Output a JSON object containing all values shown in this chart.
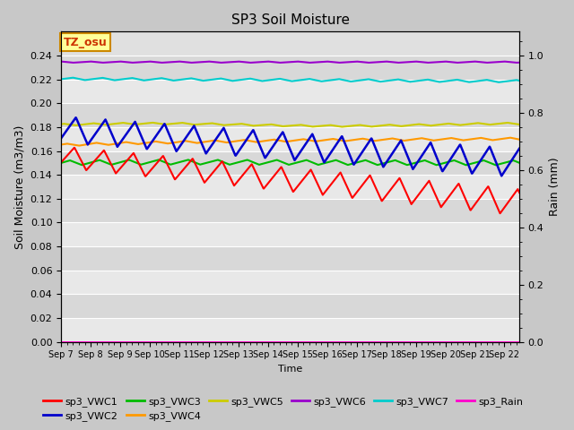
{
  "title": "SP3 Soil Moisture",
  "xlabel": "Time",
  "ylabel_left": "Soil Moisture (m3/m3)",
  "ylabel_right": "Rain (mm)",
  "n_days": 15.5,
  "ylim_left": [
    0.0,
    0.26
  ],
  "ylim_right": [
    0.0,
    1.0833
  ],
  "x_ticks_labels": [
    "Sep 7",
    "Sep 8",
    "Sep 9",
    "Sep 10",
    "Sep 11",
    "Sep 12",
    "Sep 13",
    "Sep 14",
    "Sep 15",
    "Sep 16",
    "Sep 17",
    "Sep 18",
    "Sep 19",
    "Sep 20",
    "Sep 21",
    "Sep 22"
  ],
  "background_color": "#c8c8c8",
  "plot_bg_alternating": [
    "#e0e0e0",
    "#d0d0d0"
  ],
  "annotation_box": {
    "text": "TZ_osu",
    "bg": "#ffff99",
    "edge": "#cc8800"
  },
  "series": {
    "sp3_VWC1": {
      "color": "#ff0000",
      "lw": 1.5
    },
    "sp3_VWC2": {
      "color": "#0000cc",
      "lw": 1.8
    },
    "sp3_VWC3": {
      "color": "#00bb00",
      "lw": 1.5
    },
    "sp3_VWC4": {
      "color": "#ff9900",
      "lw": 1.5
    },
    "sp3_VWC5": {
      "color": "#cccc00",
      "lw": 1.5
    },
    "sp3_VWC6": {
      "color": "#9900cc",
      "lw": 1.5
    },
    "sp3_VWC7": {
      "color": "#00cccc",
      "lw": 1.5
    },
    "sp3_Rain": {
      "color": "#ff00cc",
      "lw": 1.0
    }
  },
  "yticks_left": [
    0.0,
    0.02,
    0.04,
    0.06,
    0.08,
    0.1,
    0.12,
    0.14,
    0.16,
    0.18,
    0.2,
    0.22,
    0.24
  ],
  "yticks_right": [
    0.0,
    0.2,
    0.4,
    0.6,
    0.8,
    1.0
  ],
  "tick_fontsize": 8,
  "label_fontsize": 9,
  "title_fontsize": 11
}
